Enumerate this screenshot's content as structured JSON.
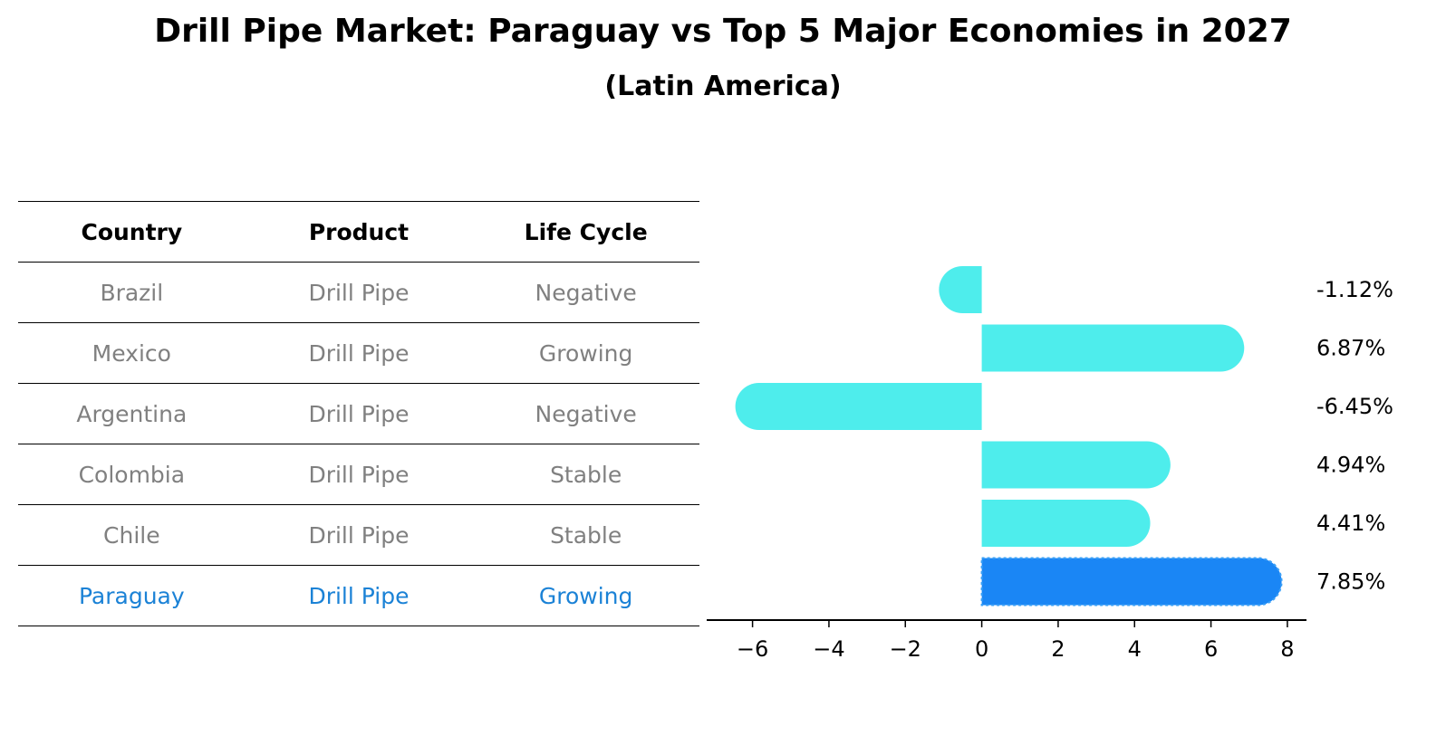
{
  "title": "Drill Pipe Market: Paraguay vs Top 5 Major Economies in 2027",
  "subtitle": "(Latin America)",
  "colors": {
    "bar": "#4eedec",
    "highlight": "#1a86f5",
    "highlight_text": "#1b82d6",
    "muted_text": "#808080"
  },
  "table": {
    "headers": [
      "Country",
      "Product",
      "Life Cycle"
    ],
    "rows": [
      {
        "country": "Brazil",
        "product": "Drill Pipe",
        "life_cycle": "Negative"
      },
      {
        "country": "Mexico",
        "product": "Drill Pipe",
        "life_cycle": "Growing"
      },
      {
        "country": "Argentina",
        "product": "Drill Pipe",
        "life_cycle": "Negative"
      },
      {
        "country": "Colombia",
        "product": "Drill Pipe",
        "life_cycle": "Stable"
      },
      {
        "country": "Chile",
        "product": "Drill Pipe",
        "life_cycle": "Stable"
      },
      {
        "country": "Paraguay",
        "product": "Drill Pipe",
        "life_cycle": "Growing"
      }
    ]
  },
  "chart_data": {
    "type": "bar",
    "orientation": "horizontal",
    "categories": [
      "Brazil",
      "Mexico",
      "Argentina",
      "Colombia",
      "Chile",
      "Paraguay"
    ],
    "values": [
      -1.12,
      6.87,
      -6.45,
      4.94,
      4.41,
      7.85
    ],
    "value_labels": [
      "-1.12%",
      "6.87%",
      "-6.45%",
      "4.94%",
      "4.41%",
      "7.85%"
    ],
    "highlight": "Paraguay",
    "xlim": [
      -7.2,
      8.5
    ],
    "xticks": [
      -6,
      -4,
      -2,
      0,
      2,
      4,
      6,
      8
    ],
    "xtick_labels": [
      "−6",
      "−4",
      "−2",
      "0",
      "2",
      "4",
      "6",
      "8"
    ],
    "grid": false,
    "legend": "none"
  }
}
